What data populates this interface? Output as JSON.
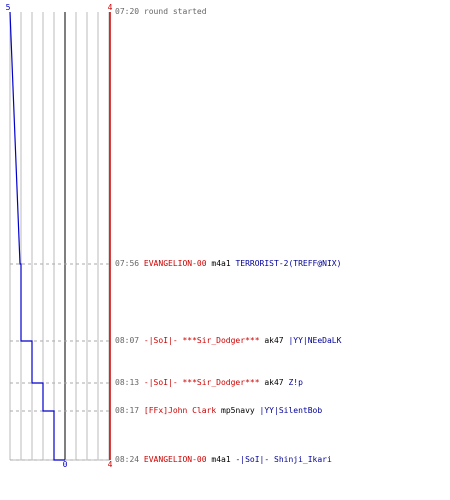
{
  "chart_data": {
    "type": "line",
    "title": "",
    "xlabel": "",
    "ylabel": "",
    "blue_start_label": "5",
    "blue_end_label": "0",
    "red_start_label": "4",
    "red_end_label": "4",
    "time_range": [
      "07:20",
      "08:24"
    ],
    "series": [
      {
        "color": "#0000cc",
        "x": [
          "07:20",
          "07:56",
          "08:07",
          "08:13",
          "08:17",
          "08:24"
        ],
        "values": [
          5,
          4,
          3,
          2,
          1,
          0
        ]
      },
      {
        "color": "#cc0000",
        "x": [
          "07:20",
          "07:56",
          "08:07",
          "08:13",
          "08:17",
          "08:24"
        ],
        "values": [
          4,
          4,
          4,
          4,
          4,
          4
        ]
      }
    ]
  },
  "events": [
    {
      "time": "07:20",
      "kind": "note",
      "text": "round started"
    },
    {
      "time": "07:56",
      "kind": "kill",
      "killer": "EVANGELION-00",
      "killer_team": "red",
      "weapon": "m4a1",
      "victim": "TERRORIST-2(TREFF@NIX)",
      "victim_team": "blue"
    },
    {
      "time": "08:07",
      "kind": "kill",
      "killer": "-|SoI|- ***Sir_Dodger***",
      "killer_team": "red",
      "weapon": "ak47",
      "victim": "|YY|NEeDaLK",
      "victim_team": "blue"
    },
    {
      "time": "08:13",
      "kind": "kill",
      "killer": "-|SoI|- ***Sir_Dodger***",
      "killer_team": "red",
      "weapon": "ak47",
      "victim": "Z!p",
      "victim_team": "blue"
    },
    {
      "time": "08:17",
      "kind": "kill",
      "killer": "[FFx]John Clark",
      "killer_team": "red",
      "weapon": "mp5navy",
      "victim": "|YY|SilentBob",
      "victim_team": "blue"
    },
    {
      "time": "08:24",
      "kind": "kill",
      "killer": "EVANGELION-00",
      "killer_team": "red",
      "weapon": "m4a1",
      "victim": "-|SoI|- Shinji_Ikari",
      "victim_team": "blue"
    }
  ]
}
